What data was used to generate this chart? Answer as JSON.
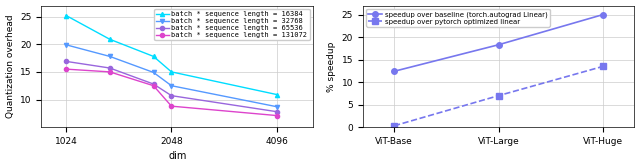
{
  "left": {
    "xlabel": "dim",
    "ylabel": "Quantization overhead",
    "ylim": [
      5,
      27
    ],
    "yticks": [
      10,
      15,
      20,
      25
    ],
    "x_data": [
      1024,
      1365,
      1820,
      2048,
      4096
    ],
    "series": [
      {
        "label": "batch * sequence length = 16384",
        "color": "#00DDFF",
        "marker": "^",
        "y": [
          25.2,
          20.9,
          17.8,
          15.0,
          10.9
        ]
      },
      {
        "label": "batch * sequence length = 32768",
        "color": "#5599FF",
        "marker": "v",
        "y": [
          19.9,
          17.8,
          14.9,
          12.5,
          8.7
        ]
      },
      {
        "label": "batch * sequence length = 65536",
        "color": "#9966DD",
        "marker": "o",
        "y": [
          16.9,
          15.7,
          12.8,
          10.7,
          7.8
        ]
      },
      {
        "label": "batch * sequence length = 131072",
        "color": "#DD44CC",
        "marker": "o",
        "y": [
          15.5,
          15.0,
          12.5,
          8.8,
          7.1
        ]
      }
    ]
  },
  "right": {
    "ylabel": "% speedup",
    "xlim": [
      -0.3,
      2.3
    ],
    "ylim": [
      0,
      27
    ],
    "xtick_labels": [
      "ViT-Base",
      "ViT-Large",
      "ViT-Huge"
    ],
    "yticks": [
      0,
      5,
      10,
      15,
      20,
      25
    ],
    "series": [
      {
        "label": "speedup over baseline (torch.autograd Linear)",
        "color": "#7777EE",
        "marker": "o",
        "linestyle": "-",
        "x": [
          0,
          1,
          2
        ],
        "y": [
          12.4,
          18.3,
          25.0
        ]
      },
      {
        "label": "speedup over pytorch optimized linear",
        "color": "#7777EE",
        "marker": "s",
        "linestyle": "--",
        "x": [
          0,
          1,
          2
        ],
        "y": [
          0.3,
          7.0,
          13.5
        ]
      }
    ]
  }
}
